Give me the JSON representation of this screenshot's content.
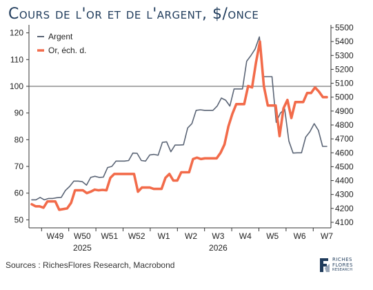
{
  "title": "Cours de l'or et de l'argent, $/once",
  "source": "Sources : RichesFlores Research, Macrobond",
  "logo": {
    "line1": "RICHES",
    "line2": "FLORES",
    "line3": "RESEARCH"
  },
  "colors": {
    "silver": "#5a6475",
    "gold": "#f26b4a",
    "refline": "#555555",
    "axis": "#333333"
  },
  "chart_data": {
    "type": "line",
    "title": "Cours de l'or et de l'argent, $/once",
    "left_axis": {
      "ticks": [
        50,
        60,
        70,
        80,
        90,
        100,
        110,
        120
      ],
      "range": [
        47,
        123
      ]
    },
    "right_axis": {
      "ticks": [
        4100,
        4200,
        4300,
        4400,
        4500,
        4600,
        4700,
        4800,
        4900,
        5000,
        5100,
        5200,
        5300,
        5400,
        5500
      ],
      "range": [
        4060,
        5520
      ]
    },
    "x_tick_labels": [
      "W49",
      "W50",
      "W51",
      "W52",
      "W1",
      "W2",
      "W3",
      "W4",
      "W5",
      "W6",
      "W7"
    ],
    "year_labels": [
      {
        "label": "2025",
        "at": "W50"
      },
      {
        "label": "2026",
        "at": "W3"
      }
    ],
    "reference_line": {
      "axis": "left",
      "value": 100
    },
    "legend": [
      "Argent",
      "Or, éch. d."
    ],
    "series": [
      {
        "name": "Argent",
        "axis": "left",
        "values": [
          57.5,
          57.5,
          58.4,
          57.5,
          58.0,
          58.0,
          58.3,
          58.4,
          61.0,
          62.5,
          64.5,
          64.5,
          64.3,
          63.0,
          65.9,
          66.3,
          65.9,
          66.0,
          69.6,
          70.0,
          72.0,
          72.0,
          72.0,
          72.2,
          75.0,
          74.9,
          72.2,
          72.0,
          74.3,
          74.5,
          74.2,
          79.0,
          79.2,
          75.5,
          78.0,
          78.0,
          78.1,
          84.4,
          86.0,
          91.0,
          91.2,
          91.0,
          91.0,
          91.0,
          92.6,
          95.6,
          94.8,
          92.6,
          99.0,
          99.0,
          99.0,
          109.4,
          111.5,
          114.0,
          118.5,
          103.6,
          103.6,
          103.6,
          86.5,
          90.0,
          91.5,
          79.5,
          75.0,
          75.1,
          75.1,
          81.0,
          83.0,
          86.0,
          83.5,
          77.5,
          77.5
        ]
      },
      {
        "name": "Or, éch. d.",
        "axis": "right",
        "values": [
          4230,
          4215,
          4215,
          4205,
          4250,
          4250,
          4250,
          4190,
          4195,
          4200,
          4240,
          4330,
          4330,
          4330,
          4310,
          4320,
          4335,
          4330,
          4333,
          4330,
          4420,
          4448,
          4448,
          4448,
          4448,
          4448,
          4448,
          4320,
          4350,
          4350,
          4350,
          4340,
          4340,
          4340,
          4420,
          4448,
          4400,
          4400,
          4460,
          4460,
          4460,
          4555,
          4565,
          4555,
          4560,
          4560,
          4560,
          4560,
          4600,
          4660,
          4790,
          4880,
          4950,
          4950,
          4950,
          5080,
          5070,
          5250,
          5400,
          5080,
          4940,
          4940,
          4940,
          4720,
          4920,
          4980,
          4850,
          4965,
          4965,
          4965,
          5030,
          5030,
          5070,
          5040,
          5000,
          5000
        ]
      }
    ]
  }
}
